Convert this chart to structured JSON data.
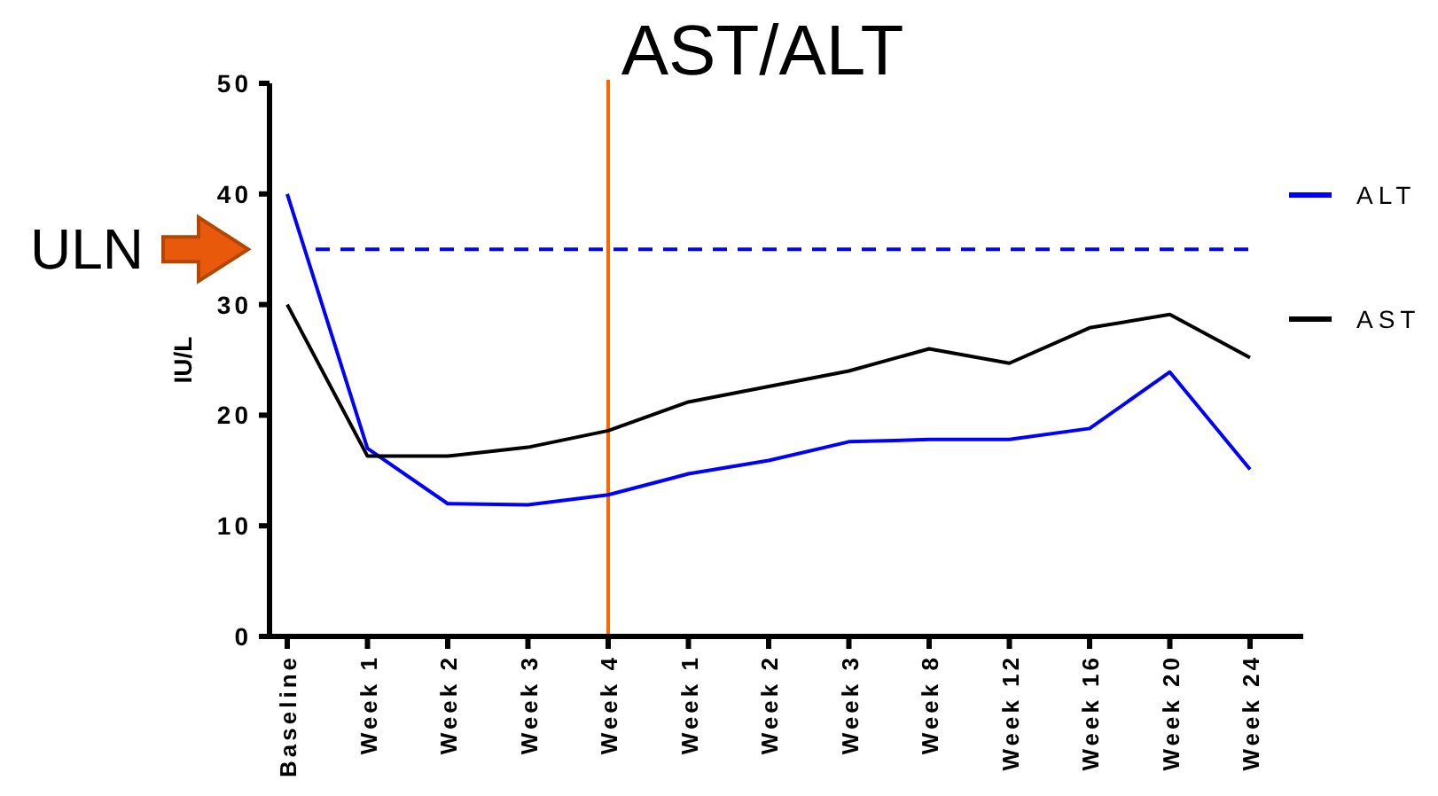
{
  "chart_data": {
    "type": "line",
    "title": "AST/ALT",
    "ylabel": "IU/L",
    "categories": [
      "Baseline",
      "Week 1",
      "Week 2",
      "Week 3",
      "Week 4",
      "Week 1",
      "Week 2",
      "Week 3",
      "Week 8",
      "Week 12",
      "Week 16",
      "Week 20",
      "Week 24"
    ],
    "ylim": [
      0,
      50
    ],
    "yticks": [
      0,
      10,
      20,
      30,
      40,
      50
    ],
    "series": [
      {
        "name": "ALT",
        "color": "#0000ff",
        "values": [
          40,
          17,
          12,
          11.9,
          12.8,
          14.7,
          15.9,
          17.6,
          17.8,
          17.8,
          18.8,
          23.9,
          15.1
        ]
      },
      {
        "name": "AST",
        "color": "#000000",
        "values": [
          30,
          16.3,
          16.3,
          17.1,
          18.6,
          21.2,
          22.6,
          24,
          26,
          24.7,
          27.9,
          29.1,
          25.2
        ]
      }
    ],
    "ref_lines": [
      {
        "axis": "y",
        "value": 35,
        "color": "#0000ff",
        "line_style": "dashed"
      },
      {
        "axis": "x",
        "value": "Week 4",
        "color": "#ff6600",
        "line_style": "solid"
      }
    ],
    "annotations": [
      "ULN"
    ],
    "legend": "right",
    "grid": false,
    "marker": "none",
    "line_style": "solid"
  }
}
